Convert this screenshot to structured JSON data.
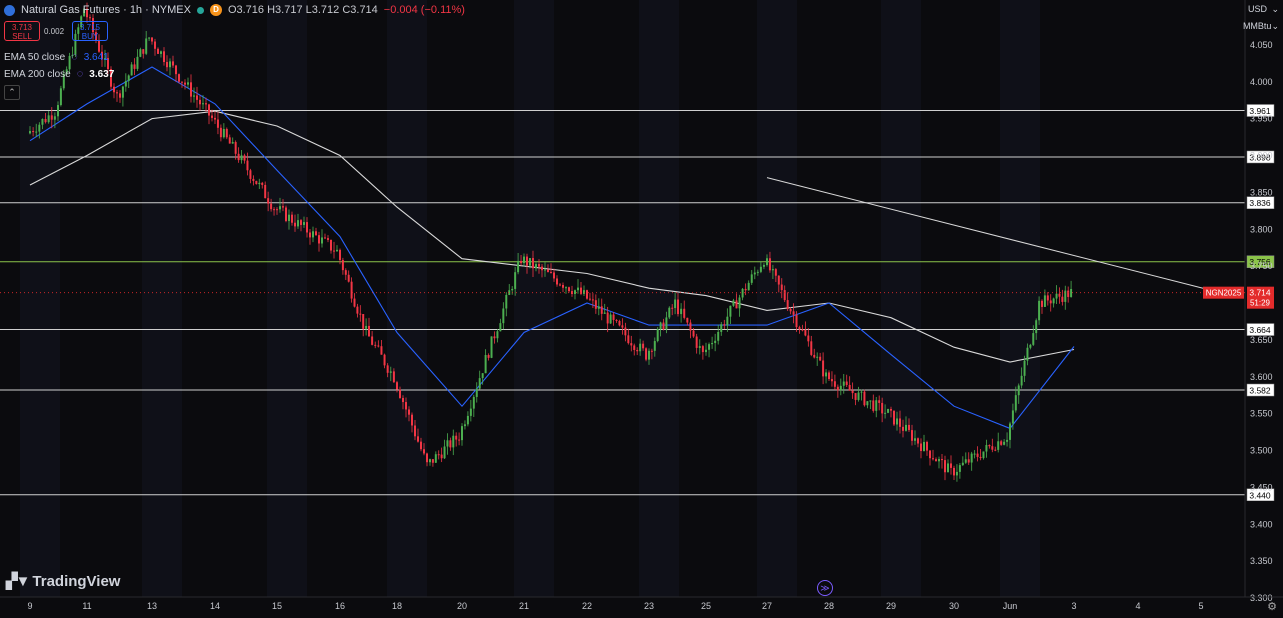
{
  "header": {
    "symbol": "Natural Gas Futures · 1h · NYMEX",
    "exchange_badge": "D",
    "ohlc": "O3.716 H3.717 L3.712 C3.714",
    "change": "−0.004 (−0.11%)",
    "sell_price": "3.713",
    "sell_label": "SELL",
    "buy_price": "3.715",
    "buy_label": "BUY",
    "spread": "0.002",
    "ema50_label": "EMA 50 close",
    "ema50_value": "3.641",
    "ema200_label": "EMA 200 close",
    "ema200_value": "3.637"
  },
  "axis": {
    "currency": "USD",
    "unit": "MMBtu"
  },
  "branding": {
    "logo_text": "TradingView"
  },
  "colors": {
    "background": "#0b0b0e",
    "up": "#4caf50",
    "down": "#f23645",
    "ema50": "#2962ff",
    "ema200": "#d9d9d9",
    "level": "#cfcfcf",
    "level_highlight": "#8bc34a",
    "last_price": "#e32b2b"
  },
  "chart_data": {
    "type": "candlestick",
    "title": "Natural Gas Futures · 1h · NYMEX",
    "ylim": [
      3.3,
      4.1
    ],
    "yticks": [
      "4.050",
      "4.000",
      "3.950",
      "3.900",
      "3.850",
      "3.800",
      "3.750",
      "3.700",
      "3.650",
      "3.600",
      "3.550",
      "3.500",
      "3.450",
      "3.400",
      "3.350",
      "3.300"
    ],
    "x_labels": [
      "9",
      "11",
      "13",
      "14",
      "15",
      "16",
      "18",
      "20",
      "21",
      "22",
      "23",
      "25",
      "27",
      "28",
      "29",
      "30",
      "Jun",
      "3",
      "4",
      "5"
    ],
    "x_label_index": [
      0,
      1,
      2,
      3,
      4,
      5,
      6,
      7,
      8,
      9,
      10,
      11,
      12,
      13,
      14,
      15,
      16,
      17,
      18,
      19
    ],
    "levels": [
      {
        "value": 3.961,
        "label": "3.961",
        "highlight": false
      },
      {
        "value": 3.898,
        "label": "3.898",
        "highlight": false
      },
      {
        "value": 3.836,
        "label": "3.836",
        "highlight": false
      },
      {
        "value": 3.756,
        "label": "3.756",
        "highlight": true
      },
      {
        "value": 3.664,
        "label": "3.664",
        "highlight": false
      },
      {
        "value": 3.582,
        "label": "3.582",
        "highlight": false
      },
      {
        "value": 3.44,
        "label": "3.440",
        "highlight": false
      }
    ],
    "last_price": {
      "value": 3.714,
      "label": "3.714",
      "symbol": "NGN2025",
      "countdown": "51:29"
    },
    "trendline": {
      "start": {
        "date": "27",
        "value": 3.87
      },
      "end": {
        "date": "4",
        "value": 3.72
      }
    },
    "price_path": [
      {
        "date": "9",
        "value": 3.93
      },
      {
        "date": "10",
        "value": 3.96
      },
      {
        "date": "11",
        "value": 4.1
      },
      {
        "date": "12",
        "value": 3.98
      },
      {
        "date": "13",
        "value": 4.06
      },
      {
        "date": "14",
        "value": 3.95
      },
      {
        "date": "15",
        "value": 3.83
      },
      {
        "date": "16",
        "value": 3.77
      },
      {
        "date": "17",
        "value": 3.66
      },
      {
        "date": "18",
        "value": 3.6
      },
      {
        "date": "19",
        "value": 3.48
      },
      {
        "date": "20",
        "value": 3.52
      },
      {
        "date": "21",
        "value": 3.76
      },
      {
        "date": "22",
        "value": 3.71
      },
      {
        "date": "23",
        "value": 3.63
      },
      {
        "date": "24",
        "value": 3.7
      },
      {
        "date": "25",
        "value": 3.63
      },
      {
        "date": "27",
        "value": 3.76
      },
      {
        "date": "28",
        "value": 3.6
      },
      {
        "date": "29",
        "value": 3.55
      },
      {
        "date": "30",
        "value": 3.47
      },
      {
        "date": "Jun",
        "value": 3.52
      },
      {
        "date": "2",
        "value": 3.7
      },
      {
        "date": "3",
        "value": 3.714
      }
    ],
    "ema50_path": [
      {
        "date": "9",
        "value": 3.92
      },
      {
        "date": "11",
        "value": 3.97
      },
      {
        "date": "13",
        "value": 4.02
      },
      {
        "date": "14",
        "value": 3.97
      },
      {
        "date": "15",
        "value": 3.88
      },
      {
        "date": "16",
        "value": 3.79
      },
      {
        "date": "18",
        "value": 3.66
      },
      {
        "date": "20",
        "value": 3.56
      },
      {
        "date": "21",
        "value": 3.66
      },
      {
        "date": "22",
        "value": 3.7
      },
      {
        "date": "23",
        "value": 3.67
      },
      {
        "date": "25",
        "value": 3.67
      },
      {
        "date": "27",
        "value": 3.67
      },
      {
        "date": "28",
        "value": 3.7
      },
      {
        "date": "29",
        "value": 3.63
      },
      {
        "date": "30",
        "value": 3.56
      },
      {
        "date": "Jun",
        "value": 3.53
      },
      {
        "date": "3",
        "value": 3.641
      }
    ],
    "ema200_path": [
      {
        "date": "9",
        "value": 3.86
      },
      {
        "date": "11",
        "value": 3.9
      },
      {
        "date": "13",
        "value": 3.95
      },
      {
        "date": "14",
        "value": 3.96
      },
      {
        "date": "15",
        "value": 3.94
      },
      {
        "date": "16",
        "value": 3.9
      },
      {
        "date": "18",
        "value": 3.83
      },
      {
        "date": "20",
        "value": 3.76
      },
      {
        "date": "21",
        "value": 3.75
      },
      {
        "date": "22",
        "value": 3.74
      },
      {
        "date": "23",
        "value": 3.72
      },
      {
        "date": "25",
        "value": 3.71
      },
      {
        "date": "27",
        "value": 3.69
      },
      {
        "date": "28",
        "value": 3.7
      },
      {
        "date": "29",
        "value": 3.68
      },
      {
        "date": "30",
        "value": 3.64
      },
      {
        "date": "Jun",
        "value": 3.62
      },
      {
        "date": "3",
        "value": 3.637
      }
    ],
    "grid": false
  }
}
